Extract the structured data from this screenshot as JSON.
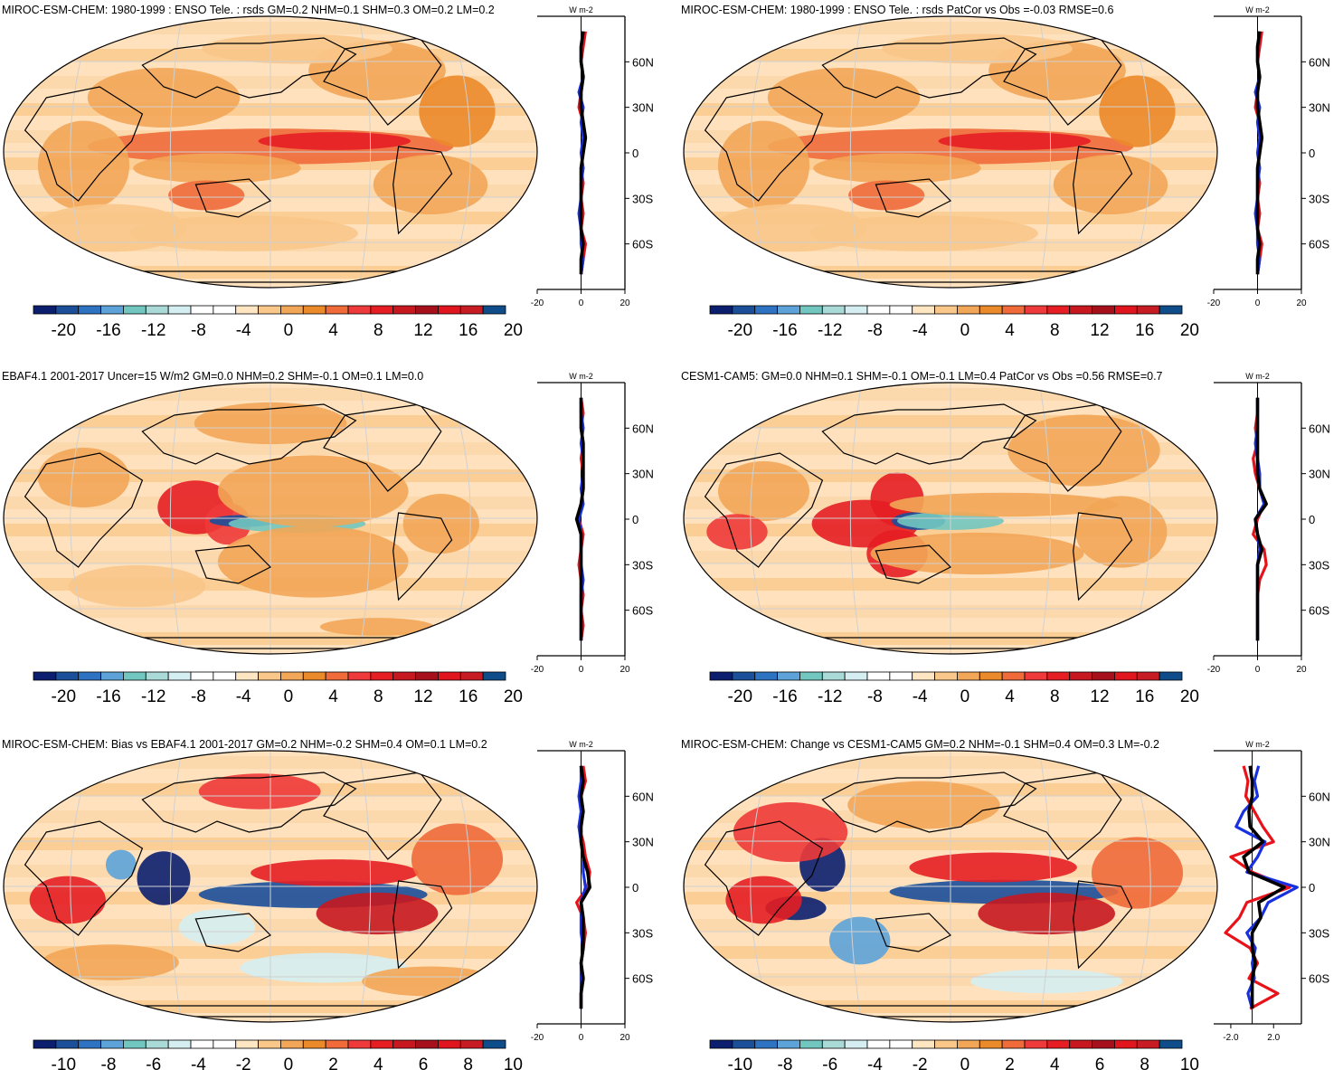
{
  "figure": {
    "panels": [
      {
        "title": "MIROC-ESM-CHEM: 1980-1999 : ENSO Tele. : rsds GM=0.2 NHM=0.1 SHM=0.3 OM=0.2 LM=0.2",
        "colorbar_labels": [
          "-20",
          "-16",
          "-12",
          "-8",
          "-4",
          "0",
          "4",
          "8",
          "12",
          "16",
          "20"
        ],
        "profile": {
          "units": "W m-2",
          "x_ticks": [
            "-20",
            "0",
            "20"
          ],
          "y_ticks": [
            "60N",
            "30N",
            "0",
            "30S",
            "60S"
          ]
        }
      },
      {
        "title": "MIROC-ESM-CHEM: 1980-1999 : ENSO Tele. : rsds PatCor vs Obs =-0.03 RMSE=0.6",
        "colorbar_labels": [
          "-20",
          "-16",
          "-12",
          "-8",
          "-4",
          "0",
          "4",
          "8",
          "12",
          "16",
          "20"
        ],
        "profile": {
          "units": "W m-2",
          "x_ticks": [
            "-20",
            "0",
            "20"
          ],
          "y_ticks": [
            "60N",
            "30N",
            "0",
            "30S",
            "60S"
          ]
        }
      },
      {
        "title": "EBAF4.1 2001-2017 Uncer=15 W/m2 GM=0.0 NHM=0.2 SHM=-0.1 OM=0.1 LM=0.0",
        "colorbar_labels": [
          "-20",
          "-16",
          "-12",
          "-8",
          "-4",
          "0",
          "4",
          "8",
          "12",
          "16",
          "20"
        ],
        "profile": {
          "units": "W m-2",
          "x_ticks": [
            "-20",
            "0",
            "20"
          ],
          "y_ticks": [
            "60N",
            "30N",
            "0",
            "30S",
            "60S"
          ]
        }
      },
      {
        "title": "CESM1-CAM5: GM=0.0 NHM=0.1 SHM=-0.1 OM=-0.1 LM=0.4 PatCor vs Obs =0.56 RMSE=0.7",
        "colorbar_labels": [
          "-20",
          "-16",
          "-12",
          "-8",
          "-4",
          "0",
          "4",
          "8",
          "12",
          "16",
          "20"
        ],
        "profile": {
          "units": "W m-2",
          "x_ticks": [
            "-20",
            "0",
            "20"
          ],
          "y_ticks": [
            "60N",
            "30N",
            "0",
            "30S",
            "60S"
          ]
        }
      },
      {
        "title": "MIROC-ESM-CHEM: Bias vs EBAF4.1 2001-2017 GM=0.2 NHM=-0.2 SHM=0.4 OM=0.1 LM=0.2",
        "colorbar_labels": [
          "-10",
          "-8",
          "-6",
          "-4",
          "-2",
          "0",
          "2",
          "4",
          "6",
          "8",
          "10"
        ],
        "profile": {
          "units": "W m-2",
          "x_ticks": [
            "-20",
            "0",
            "20"
          ],
          "y_ticks": [
            "60N",
            "30N",
            "0",
            "30S",
            "60S"
          ]
        }
      },
      {
        "title": "MIROC-ESM-CHEM: Change vs CESM1-CAM5 GM=0.2 NHM=-0.1 SHM=0.4 OM=0.3 LM=-0.2",
        "colorbar_labels": [
          "-10",
          "-8",
          "-6",
          "-4",
          "-2",
          "0",
          "2",
          "4",
          "6",
          "8",
          "10"
        ],
        "profile": {
          "units": "W m-2",
          "x_ticks": [
            "-2.0",
            "2.0"
          ],
          "y_ticks": [
            "60N",
            "30N",
            "0",
            "30S",
            "60S"
          ]
        }
      }
    ]
  },
  "colors": {
    "colorbar": [
      "#0b1f6e",
      "#1b4f9a",
      "#2e72c2",
      "#5da3d9",
      "#72c6c0",
      "#a9dad8",
      "#d5eef2",
      "#ffffff",
      "#ffffff",
      "#ffe6c2",
      "#f9c78a",
      "#f2a657",
      "#eb8a2a",
      "#f06a3a",
      "#ee3a3a",
      "#e61e23",
      "#c71820",
      "#a6101a",
      "#e0151d",
      "#c81c24",
      "#0f4c8a"
    ],
    "profile_lines": {
      "model": "#e8131a",
      "obs": "#1830e0",
      "mean": "#000000"
    }
  },
  "chart_data": [
    {
      "type": "heatmap",
      "panel": 1,
      "variable": "rsds ENSO teleconnection",
      "title": "MIROC-ESM-CHEM: 1980-1999 : ENSO Tele. : rsds GM=0.2 NHM=0.1 SHM=0.3 OM=0.2 LM=0.2",
      "colorbar": {
        "min": -20,
        "max": 20,
        "ticks": [
          -20,
          -16,
          -12,
          -8,
          -4,
          0,
          4,
          8,
          12,
          16,
          20
        ]
      },
      "profile": {
        "xlim": [
          -20,
          20
        ],
        "latitudes": [
          80,
          70,
          60,
          50,
          40,
          30,
          20,
          10,
          0,
          -10,
          -20,
          -30,
          -40,
          -50,
          -60,
          -70,
          -80
        ],
        "series": [
          {
            "name": "model",
            "values": [
              2,
              1,
              0,
              1,
              0,
              -1,
              1,
              2,
              1,
              0,
              1,
              0,
              1,
              0,
              2,
              1,
              0
            ]
          },
          {
            "name": "obs",
            "values": [
              1,
              0,
              0,
              1,
              -1,
              1,
              0,
              1,
              0,
              1,
              0,
              0,
              -1,
              0,
              0,
              1,
              0
            ]
          },
          {
            "name": "mean",
            "values": [
              1,
              0,
              0,
              1,
              0,
              0,
              1,
              2,
              1,
              0,
              0,
              0,
              0,
              0,
              1,
              0,
              0
            ]
          }
        ]
      }
    },
    {
      "type": "heatmap",
      "panel": 2,
      "title": "MIROC-ESM-CHEM: 1980-1999 : ENSO Tele. : rsds PatCor vs Obs =-0.03 RMSE=0.6",
      "colorbar": {
        "min": -20,
        "max": 20,
        "ticks": [
          -20,
          -16,
          -12,
          -8,
          -4,
          0,
          4,
          8,
          12,
          16,
          20
        ]
      },
      "profile": {
        "xlim": [
          -20,
          20
        ],
        "latitudes": [
          80,
          70,
          60,
          50,
          40,
          30,
          20,
          10,
          0,
          -10,
          -20,
          -30,
          -40,
          -50,
          -60,
          -70,
          -80
        ],
        "series": [
          {
            "name": "model",
            "values": [
              2,
              1,
              0,
              1,
              0,
              -1,
              1,
              2,
              1,
              0,
              1,
              0,
              1,
              0,
              2,
              1,
              0
            ]
          },
          {
            "name": "obs",
            "values": [
              1,
              0,
              0,
              1,
              -1,
              1,
              0,
              1,
              0,
              1,
              0,
              0,
              -1,
              0,
              0,
              1,
              0
            ]
          },
          {
            "name": "mean",
            "values": [
              1,
              0,
              0,
              1,
              0,
              0,
              1,
              2,
              1,
              0,
              0,
              0,
              0,
              0,
              1,
              0,
              0
            ]
          }
        ]
      }
    },
    {
      "type": "heatmap",
      "panel": 3,
      "title": "EBAF4.1 2001-2017 Uncer=15 W/m2 GM=0.0 NHM=0.2 SHM=-0.1 OM=0.1 LM=0.0",
      "colorbar": {
        "min": -20,
        "max": 20,
        "ticks": [
          -20,
          -16,
          -12,
          -8,
          -4,
          0,
          4,
          8,
          12,
          16,
          20
        ]
      },
      "profile": {
        "xlim": [
          -20,
          20
        ],
        "latitudes": [
          80,
          70,
          60,
          50,
          40,
          30,
          20,
          10,
          0,
          -10,
          -20,
          -30,
          -40,
          -50,
          -60,
          -70,
          -80
        ],
        "series": [
          {
            "name": "model",
            "values": [
              0,
              1,
              0,
              1,
              0,
              1,
              1,
              0,
              -1,
              1,
              0,
              -1,
              0,
              1,
              0,
              1,
              0
            ]
          },
          {
            "name": "obs",
            "values": [
              0,
              0,
              1,
              0,
              1,
              1,
              0,
              1,
              -1,
              0,
              0,
              0,
              1,
              0,
              0,
              0,
              0
            ]
          },
          {
            "name": "mean",
            "values": [
              0,
              0,
              0,
              1,
              1,
              1,
              1,
              0,
              -2,
              0,
              0,
              0,
              0,
              0,
              0,
              0,
              0
            ]
          }
        ]
      }
    },
    {
      "type": "heatmap",
      "panel": 4,
      "title": "CESM1-CAM5: GM=0.0 NHM=0.1 SHM=-0.1 OM=-0.1 LM=0.4 PatCor vs Obs =0.56 RMSE=0.7",
      "colorbar": {
        "min": -20,
        "max": 20,
        "ticks": [
          -20,
          -16,
          -12,
          -8,
          -4,
          0,
          4,
          8,
          12,
          16,
          20
        ]
      },
      "profile": {
        "xlim": [
          -20,
          20
        ],
        "latitudes": [
          80,
          70,
          60,
          50,
          40,
          30,
          20,
          10,
          0,
          -10,
          -20,
          -30,
          -40,
          -50,
          -60,
          -70,
          -80
        ],
        "series": [
          {
            "name": "model",
            "values": [
              0,
              0,
              -1,
              0,
              -2,
              -1,
              1,
              3,
              0,
              -2,
              3,
              4,
              1,
              0,
              0,
              0,
              0
            ]
          },
          {
            "name": "obs",
            "values": [
              0,
              0,
              0,
              -1,
              0,
              1,
              1,
              3,
              -1,
              0,
              1,
              0,
              0,
              0,
              0,
              0,
              0
            ]
          },
          {
            "name": "mean",
            "values": [
              0,
              0,
              0,
              0,
              0,
              0,
              1,
              4,
              -1,
              0,
              2,
              0,
              0,
              0,
              0,
              0,
              0
            ]
          }
        ]
      }
    },
    {
      "type": "heatmap",
      "panel": 5,
      "title": "MIROC-ESM-CHEM: Bias vs EBAF4.1 2001-2017 GM=0.2 NHM=-0.2 SHM=0.4 OM=0.1 LM=0.2",
      "colorbar": {
        "min": -10,
        "max": 10,
        "ticks": [
          -10,
          -8,
          -6,
          -4,
          -2,
          0,
          2,
          4,
          6,
          8,
          10
        ]
      },
      "profile": {
        "xlim": [
          -20,
          20
        ],
        "latitudes": [
          80,
          70,
          60,
          50,
          40,
          30,
          20,
          10,
          0,
          -10,
          -20,
          -30,
          -40,
          -50,
          -60,
          -70,
          -80
        ],
        "series": [
          {
            "name": "model",
            "values": [
              1,
              2,
              0,
              1,
              -1,
              1,
              2,
              4,
              3,
              -2,
              1,
              2,
              1,
              0,
              1,
              0,
              0
            ]
          },
          {
            "name": "obs",
            "values": [
              0,
              0,
              -1,
              0,
              -1,
              0,
              1,
              1,
              2,
              0,
              0,
              0,
              1,
              0,
              0,
              0,
              0
            ]
          },
          {
            "name": "mean",
            "values": [
              0,
              1,
              0,
              1,
              0,
              0,
              1,
              3,
              4,
              0,
              1,
              1,
              1,
              0,
              1,
              0,
              0
            ]
          }
        ]
      }
    },
    {
      "type": "heatmap",
      "panel": 6,
      "title": "MIROC-ESM-CHEM: Change vs CESM1-CAM5 GM=0.2 NHM=-0.1 SHM=0.4 OM=0.3 LM=-0.2",
      "colorbar": {
        "min": -10,
        "max": 10,
        "ticks": [
          -10,
          -8,
          -6,
          -4,
          -2,
          0,
          2,
          4,
          6,
          8,
          10
        ]
      },
      "profile": {
        "xlim": [
          -3.6,
          4.6
        ],
        "x_ticks": [
          -2.0,
          2.0
        ],
        "latitudes": [
          80,
          70,
          60,
          50,
          40,
          30,
          20,
          10,
          0,
          -10,
          -20,
          -30,
          -40,
          -50,
          -60,
          -70,
          -80
        ],
        "series": [
          {
            "name": "model",
            "values": [
              -0.8,
              -0.4,
              -0.6,
              0.2,
              1.0,
              2.0,
              -2.0,
              0.0,
              3.5,
              -0.5,
              -1.2,
              -2.5,
              -0.2,
              0.5,
              -0.3,
              2.4,
              -0.2
            ]
          },
          {
            "name": "obs",
            "values": [
              0.6,
              0.2,
              0.5,
              -0.8,
              -1.5,
              1.2,
              0.5,
              -0.5,
              4.2,
              1.5,
              0.8,
              -0.5,
              0.3,
              0.0,
              0.2,
              -0.4,
              0.0
            ]
          },
          {
            "name": "mean",
            "values": [
              -0.2,
              0.0,
              0.0,
              -0.3,
              -0.2,
              1.0,
              -0.8,
              -0.3,
              3.0,
              0.6,
              0.8,
              0.0,
              0.0,
              0.3,
              0.0,
              0.0,
              0.0
            ]
          }
        ]
      }
    }
  ]
}
